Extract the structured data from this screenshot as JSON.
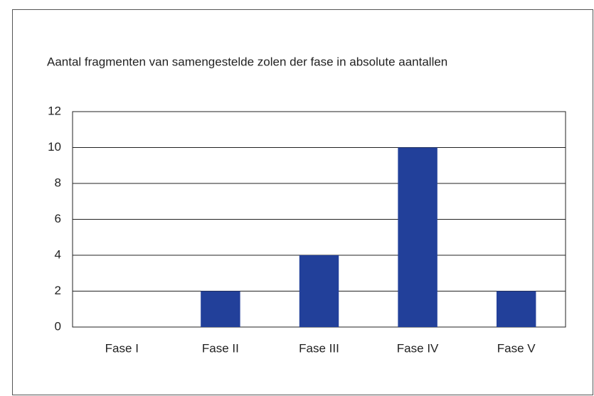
{
  "chart_data": {
    "type": "bar",
    "title": "Aantal fragmenten van samengestelde zolen der fase in absolute aantallen",
    "categories": [
      "Fase I",
      "Fase II",
      "Fase III",
      "Fase IV",
      "Fase V"
    ],
    "values": [
      0,
      2,
      4,
      10,
      2
    ],
    "color": "#22409a",
    "ylim": [
      0,
      12
    ],
    "yticks": [
      0,
      2,
      4,
      6,
      8,
      10,
      12
    ],
    "grid": true
  }
}
